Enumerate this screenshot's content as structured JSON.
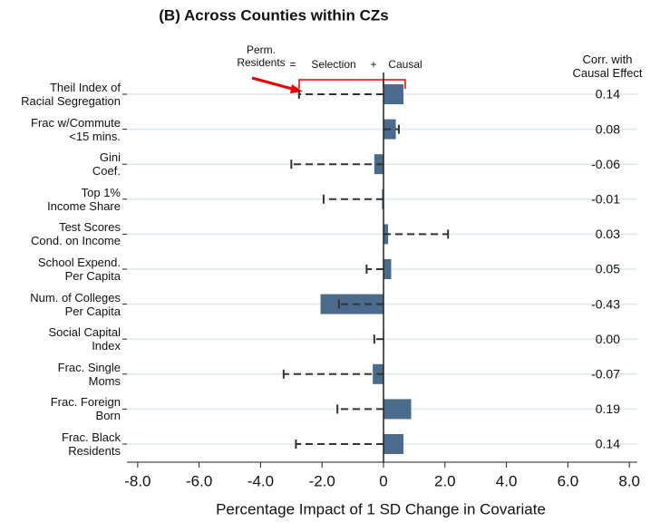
{
  "chart_data": {
    "type": "bar-interval",
    "title": "(B)  Across Counties within CZs",
    "x_label": "Percentage Impact of 1 SD Change in Covariate",
    "corr_header": "Corr. with\nCausal Effect",
    "annotation": {
      "equals": "=",
      "plus": "+",
      "selection": "Selection"
    },
    "categories": [
      "Theil Index of\nRacial Segregation",
      "Frac w/Commute\n<15 mins.",
      "Gini\nCoef.",
      "Top 1%\nIncome Share",
      "Test Scores\nCond. on Income",
      "School Expend.\nPer Capita",
      "Num. of Colleges\nPer Capita",
      "Social Capital\nIndex",
      "Frac. Single\nMoms",
      "Frac. Foreign\nBorn",
      "Frac. Black\nResidents"
    ],
    "series": [
      {
        "name": "Causal",
        "color": "#4a6b8c",
        "values": [
          0.65,
          0.4,
          -0.3,
          -0.05,
          0.15,
          0.25,
          -2.05,
          0.02,
          -0.35,
          0.9,
          0.65
        ]
      },
      {
        "name": "Perm.\nResidents",
        "color": "#333333",
        "values": [
          -2.75,
          0.5,
          -3.0,
          -1.95,
          2.1,
          -0.55,
          -1.45,
          -0.3,
          -3.25,
          -1.5,
          -2.85
        ]
      }
    ],
    "corr": {
      "values": [
        0.14,
        0.08,
        -0.06,
        -0.01,
        0.03,
        0.05,
        -0.43,
        0.0,
        -0.07,
        0.19,
        0.14
      ],
      "value_labels": [
        "0.14",
        "0.08",
        "-0.06",
        "-0.01",
        "0.03",
        "0.05",
        "-0.43",
        "0.00",
        "-0.07",
        "0.19",
        "0.14"
      ]
    },
    "xlim": [
      -8.35,
      8.26
    ],
    "xticks": [
      {
        "value": -8,
        "label": "-8.0"
      },
      {
        "value": -6,
        "label": "-6.0"
      },
      {
        "value": -4,
        "label": "-4.0"
      },
      {
        "value": -2,
        "label": "-2.0"
      },
      0,
      {
        "value": 2,
        "label": "2.0"
      },
      {
        "value": 4,
        "label": "4.0"
      },
      {
        "value": 6,
        "label": "6.0"
      },
      {
        "value": 8,
        "label": "8.0"
      }
    ],
    "grid": true
  }
}
